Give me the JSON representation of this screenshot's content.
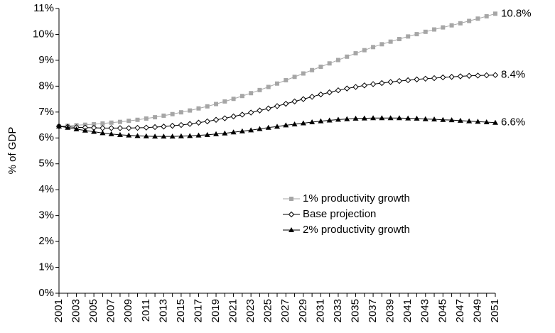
{
  "chart_data": {
    "type": "line",
    "y_label": "% of GDP",
    "categories": [
      "2001",
      null,
      "2003",
      null,
      "2005",
      null,
      "2007",
      null,
      "2009",
      null,
      "2011",
      null,
      "2013",
      null,
      "2015",
      null,
      "2017",
      null,
      "2019",
      null,
      "2021",
      null,
      "2023",
      null,
      "2025",
      null,
      "2027",
      null,
      "2029",
      null,
      "2031",
      null,
      "2033",
      null,
      "2035",
      null,
      "2037",
      null,
      "2039",
      null,
      "2041",
      null,
      "2043",
      null,
      "2045",
      null,
      "2047",
      null,
      "2049",
      null,
      "2051"
    ],
    "ylim": [
      0,
      11
    ],
    "yticks": [
      {
        "value": 0,
        "label": "0%"
      },
      {
        "value": 1,
        "label": "1%"
      },
      {
        "value": 2,
        "label": "2%"
      },
      {
        "value": 3,
        "label": "3%"
      },
      {
        "value": 4,
        "label": "4%"
      },
      {
        "value": 5,
        "label": "5%"
      },
      {
        "value": 6,
        "label": "6%"
      },
      {
        "value": 7,
        "label": "7%"
      },
      {
        "value": 8,
        "label": "8%"
      },
      {
        "value": 9,
        "label": "9%"
      },
      {
        "value": 10,
        "label": "10%"
      },
      {
        "value": 11,
        "label": "11%"
      }
    ],
    "grid": false,
    "series": [
      {
        "name": "1% productivity growth",
        "color": "#a6a6a6",
        "marker": "square",
        "end_label": "10.8%",
        "values": [
          6.45,
          6.47,
          6.49,
          6.51,
          6.53,
          6.56,
          6.59,
          6.62,
          6.66,
          6.7,
          6.75,
          6.8,
          6.86,
          6.92,
          6.99,
          7.06,
          7.14,
          7.22,
          7.31,
          7.41,
          7.51,
          7.62,
          7.73,
          7.85,
          7.97,
          8.1,
          8.23,
          8.36,
          8.49,
          8.62,
          8.75,
          8.88,
          9.01,
          9.14,
          9.27,
          9.39,
          9.51,
          9.62,
          9.72,
          9.82,
          9.92,
          10.01,
          10.1,
          10.19,
          10.27,
          10.35,
          10.43,
          10.52,
          10.61,
          10.7,
          10.8
        ]
      },
      {
        "name": "Base projection",
        "color": "#000000",
        "marker": "diamond",
        "end_label": "8.4%",
        "values": [
          6.45,
          6.43,
          6.41,
          6.4,
          6.39,
          6.38,
          6.38,
          6.38,
          6.38,
          6.39,
          6.4,
          6.42,
          6.44,
          6.47,
          6.5,
          6.54,
          6.59,
          6.64,
          6.7,
          6.76,
          6.83,
          6.9,
          6.98,
          7.06,
          7.14,
          7.23,
          7.32,
          7.41,
          7.5,
          7.59,
          7.68,
          7.76,
          7.84,
          7.91,
          7.97,
          8.03,
          8.08,
          8.12,
          8.16,
          8.2,
          8.23,
          8.26,
          8.29,
          8.31,
          8.34,
          8.36,
          8.38,
          8.4,
          8.41,
          8.42,
          8.43
        ]
      },
      {
        "name": "2% productivity growth",
        "color": "#000000",
        "marker": "triangle",
        "end_label": "6.6%",
        "values": [
          6.45,
          6.4,
          6.34,
          6.29,
          6.24,
          6.19,
          6.15,
          6.12,
          6.1,
          6.08,
          6.07,
          6.06,
          6.06,
          6.06,
          6.07,
          6.08,
          6.1,
          6.12,
          6.15,
          6.18,
          6.22,
          6.26,
          6.3,
          6.35,
          6.4,
          6.44,
          6.49,
          6.53,
          6.57,
          6.61,
          6.65,
          6.68,
          6.71,
          6.73,
          6.75,
          6.76,
          6.77,
          6.77,
          6.77,
          6.77,
          6.76,
          6.75,
          6.73,
          6.72,
          6.7,
          6.69,
          6.67,
          6.65,
          6.63,
          6.61,
          6.59
        ]
      }
    ]
  }
}
